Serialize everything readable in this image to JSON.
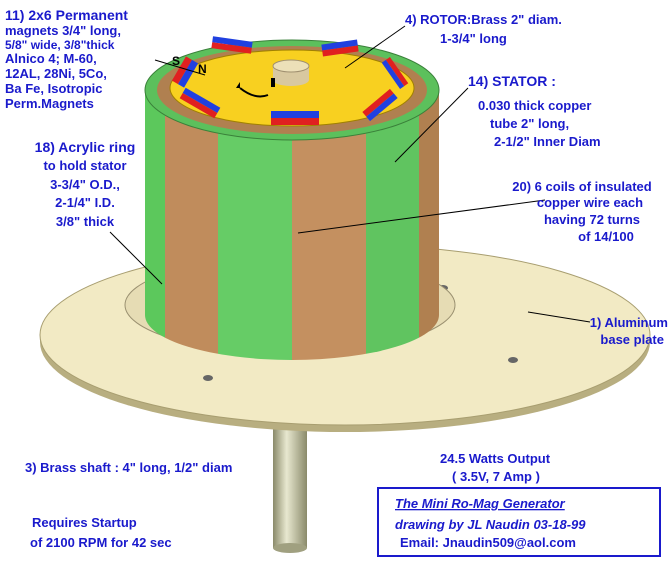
{
  "magnets_label": [
    "11) 2x6 Permanent",
    "magnets 3/4\" long,",
    "5/8\" wide, 3/8\"thick",
    "Alnico 4; M-60,",
    "12AL, 28Ni, 5Co,",
    "Ba Fe, Isotropic",
    "Perm.Magnets"
  ],
  "magnet_poles": [
    "S",
    "N"
  ],
  "rotor_label": [
    "4) ROTOR:Brass 2\" diam.",
    "1-3/4\" long"
  ],
  "stator_label": [
    "14) STATOR :",
    "0.030 thick copper",
    "tube 2\" long,",
    "2-1/2\" Inner Diam"
  ],
  "ring_label": [
    "18) Acrylic ring",
    "to hold stator",
    "3-3/4\" O.D.,",
    "2-1/4\" I.D.",
    "3/8\" thick"
  ],
  "coils_label": [
    "20) 6 coils of insulated",
    "copper wire each",
    "having 72 turns",
    "of 14/100"
  ],
  "base_label": [
    "1) Aluminum",
    "base plate"
  ],
  "shaft_label": "3) Brass shaft : 4\" long, 1/2\" diam",
  "output_label": [
    "24.5 Watts Output",
    "( 3.5V, 7 Amp )"
  ],
  "startup_label": [
    "Requires  Startup",
    "of 2100 RPM for 42 sec"
  ],
  "credits": {
    "title": "The Mini Ro-Mag Generator",
    "author": "drawing by JL Naudin 03-18-99",
    "email": "Email: Jnaudin509@aol.com"
  }
}
